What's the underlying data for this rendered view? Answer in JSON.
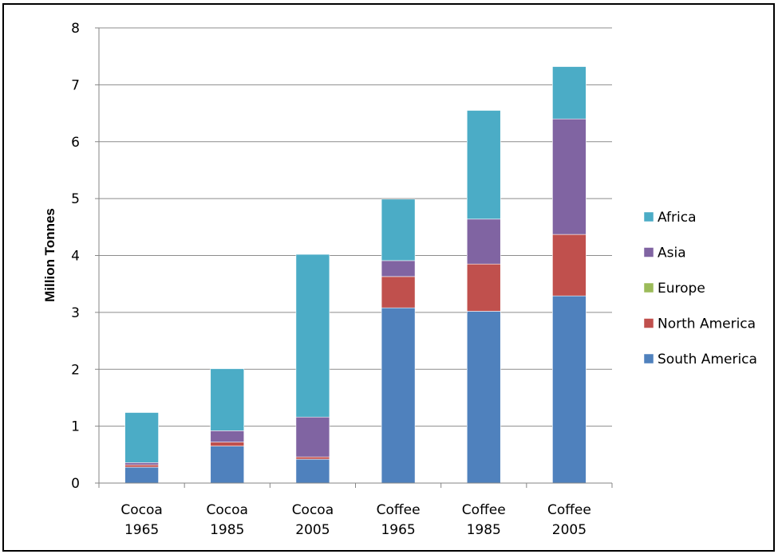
{
  "chart_data": {
    "type": "bar",
    "stacked": true,
    "title": "",
    "xlabel": "",
    "ylabel": "Million Tonnes",
    "ylim": [
      0,
      8
    ],
    "yticks": [
      0,
      1,
      2,
      3,
      4,
      5,
      6,
      7,
      8
    ],
    "grid": true,
    "legend_position": "right",
    "categories": [
      [
        "Cocoa",
        "1965"
      ],
      [
        "Cocoa",
        "1985"
      ],
      [
        "Cocoa",
        "2005"
      ],
      [
        "Coffee",
        "1965"
      ],
      [
        "Coffee",
        "1985"
      ],
      [
        "Coffee",
        "2005"
      ]
    ],
    "series": [
      {
        "name": "South America",
        "color": "#4F81BD",
        "values": [
          0.28,
          0.65,
          0.42,
          3.08,
          3.02,
          3.29
        ]
      },
      {
        "name": "North America",
        "color": "#C0504D",
        "values": [
          0.04,
          0.07,
          0.04,
          0.55,
          0.83,
          1.08
        ]
      },
      {
        "name": "Europe",
        "color": "#9BBB59",
        "values": [
          0.0,
          0.0,
          0.0,
          0.0,
          0.0,
          0.0
        ]
      },
      {
        "name": "Asia",
        "color": "#8064A2",
        "values": [
          0.04,
          0.2,
          0.7,
          0.28,
          0.79,
          2.03
        ]
      },
      {
        "name": "Africa",
        "color": "#4BACC6",
        "values": [
          0.88,
          1.09,
          2.86,
          1.08,
          1.91,
          0.92
        ]
      }
    ],
    "legend_order": [
      "Africa",
      "Asia",
      "Europe",
      "North America",
      "South America"
    ]
  }
}
